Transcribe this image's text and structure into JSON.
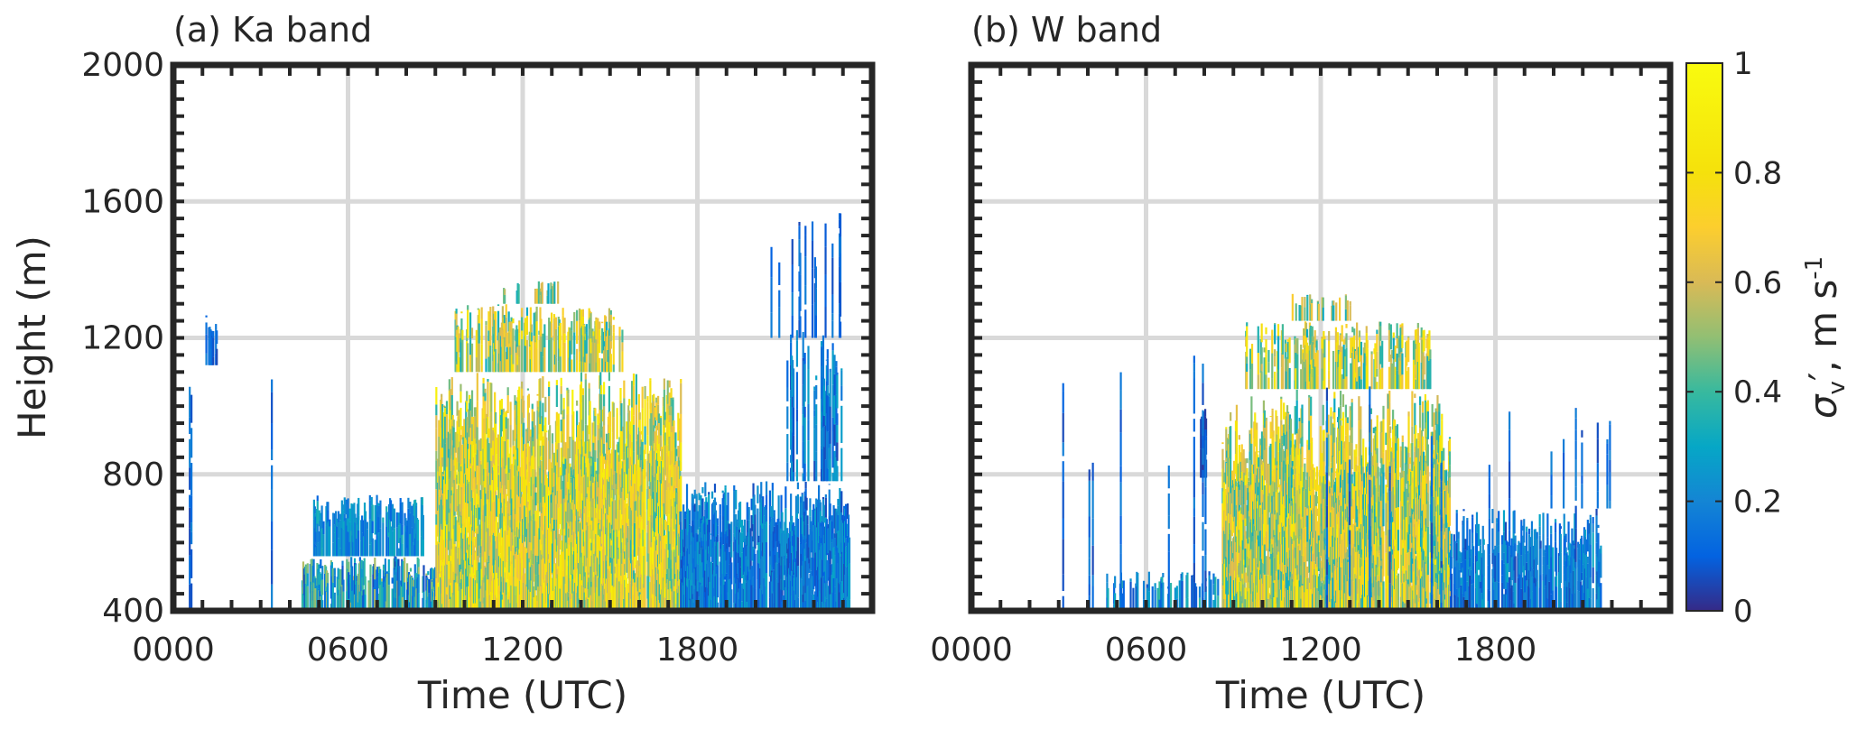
{
  "chart_data": [
    {
      "type": "heatmap",
      "title": "(a) Ka band",
      "xlabel": "Time (UTC)",
      "ylabel": "Height (m)",
      "xlim": [
        0,
        24
      ],
      "ylim": [
        400,
        2000
      ],
      "x_tick_labels": [
        "0000",
        "0600",
        "1200",
        "1800"
      ],
      "x_tick_hours": [
        0,
        6,
        12,
        18
      ],
      "y_ticks": [
        400,
        800,
        1200,
        1600,
        2000
      ],
      "grid": true,
      "echo_regions": [
        {
          "t0": 4.4,
          "t1": 9.0,
          "h0": 400,
          "h1": 560,
          "vmin": 0.05,
          "vmax": 0.55,
          "density": 0.7
        },
        {
          "t0": 4.8,
          "t1": 8.6,
          "h0": 560,
          "h1": 740,
          "vmin": 0.1,
          "vmax": 0.35,
          "density": 0.6
        },
        {
          "t0": 9.0,
          "t1": 17.4,
          "h0": 400,
          "h1": 1100,
          "vmin": 0.35,
          "vmax": 0.95,
          "density": 0.92
        },
        {
          "t0": 9.6,
          "t1": 15.4,
          "h0": 1100,
          "h1": 1300,
          "vmin": 0.3,
          "vmax": 0.85,
          "density": 0.55
        },
        {
          "t0": 11.2,
          "t1": 13.2,
          "h0": 1300,
          "h1": 1370,
          "vmin": 0.3,
          "vmax": 0.7,
          "density": 0.35
        },
        {
          "t0": 17.4,
          "t1": 23.2,
          "h0": 400,
          "h1": 780,
          "vmin": 0.05,
          "vmax": 0.3,
          "density": 0.85
        },
        {
          "t0": 21.0,
          "t1": 23.0,
          "h0": 780,
          "h1": 1230,
          "vmin": 0.05,
          "vmax": 0.3,
          "density": 0.45
        },
        {
          "t0": 1.1,
          "t1": 1.5,
          "h0": 1120,
          "h1": 1270,
          "vmin": 0.05,
          "vmax": 0.2,
          "density": 0.8
        },
        {
          "t0": 0.2,
          "t1": 3.8,
          "h0": 400,
          "h1": 1100,
          "vmin": 0.05,
          "vmax": 0.2,
          "density": 0.03
        },
        {
          "t0": 20.0,
          "t1": 23.2,
          "h0": 1200,
          "h1": 1580,
          "vmin": 0.05,
          "vmax": 0.2,
          "density": 0.08
        }
      ]
    },
    {
      "type": "heatmap",
      "title": "(b) W band",
      "xlabel": "Time (UTC)",
      "ylabel": "",
      "xlim": [
        0,
        24
      ],
      "ylim": [
        400,
        2000
      ],
      "x_tick_labels": [
        "0000",
        "0600",
        "1200",
        "1800"
      ],
      "x_tick_hours": [
        0,
        6,
        12,
        18
      ],
      "grid": true,
      "echo_regions": [
        {
          "t0": 4.6,
          "t1": 8.6,
          "h0": 400,
          "h1": 520,
          "vmin": 0.05,
          "vmax": 0.4,
          "density": 0.3
        },
        {
          "t0": 8.6,
          "t1": 16.4,
          "h0": 400,
          "h1": 1050,
          "vmin": 0.3,
          "vmax": 0.9,
          "density": 0.88
        },
        {
          "t0": 9.4,
          "t1": 15.8,
          "h0": 1050,
          "h1": 1250,
          "vmin": 0.3,
          "vmax": 0.85,
          "density": 0.5
        },
        {
          "t0": 11.0,
          "t1": 13.4,
          "h0": 1250,
          "h1": 1330,
          "vmin": 0.3,
          "vmax": 0.7,
          "density": 0.3
        },
        {
          "t0": 16.4,
          "t1": 21.6,
          "h0": 400,
          "h1": 700,
          "vmin": 0.05,
          "vmax": 0.3,
          "density": 0.55
        },
        {
          "t0": 7.85,
          "t1": 8.05,
          "h0": 790,
          "h1": 1000,
          "vmin": 0.02,
          "vmax": 0.08,
          "density": 1.0
        },
        {
          "t0": 19.8,
          "t1": 22.0,
          "h0": 700,
          "h1": 1000,
          "vmin": 0.05,
          "vmax": 0.2,
          "density": 0.06
        },
        {
          "t0": 3.0,
          "t1": 23.5,
          "h0": 400,
          "h1": 1150,
          "vmin": 0.05,
          "vmax": 0.2,
          "density": 0.02
        }
      ]
    }
  ],
  "colorbar": {
    "label": "σ_v′, m s⁻¹",
    "label_main": "σ",
    "label_sub": "v",
    "label_rest": "′, m s",
    "label_sup": "-1",
    "ticks": [
      "0",
      "0.2",
      "0.4",
      "0.6",
      "0.8",
      "1"
    ],
    "tick_values": [
      0,
      0.2,
      0.4,
      0.6,
      0.8,
      1
    ],
    "colormap": "parula",
    "range": [
      0,
      1
    ]
  },
  "colors": {
    "frame": "#262626",
    "grid": "#d9d9d9",
    "text": "#262626"
  }
}
